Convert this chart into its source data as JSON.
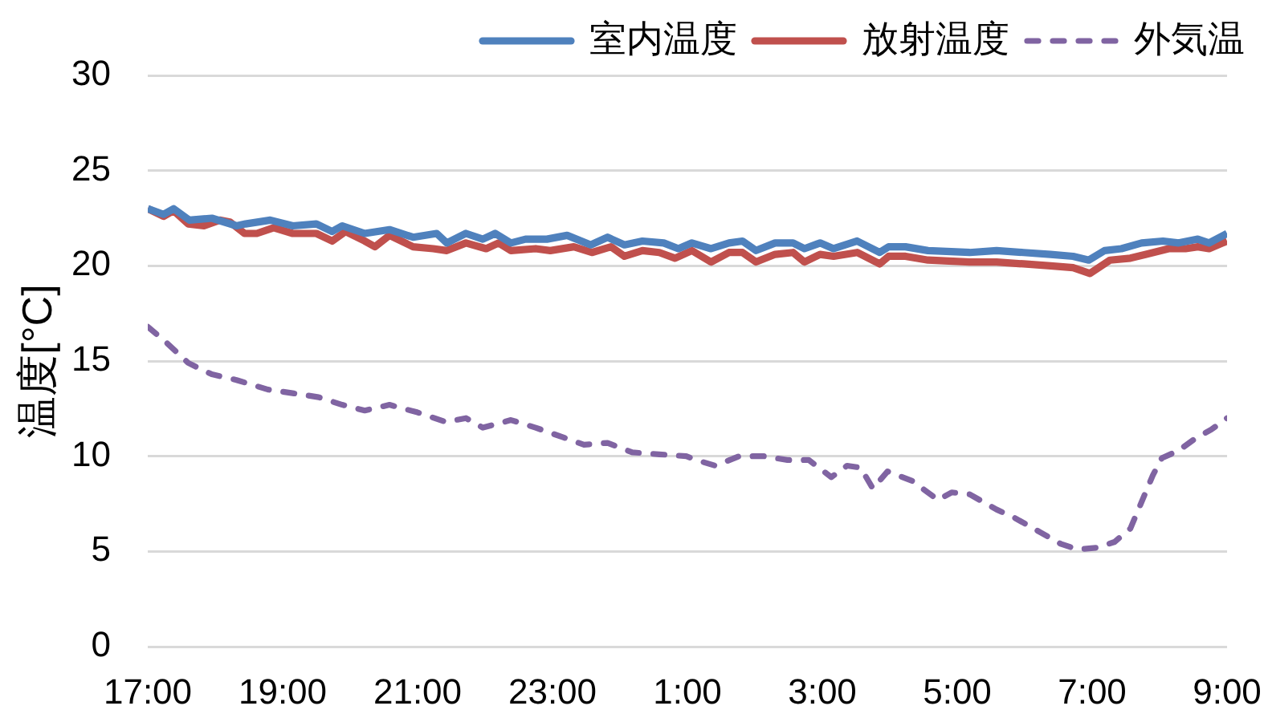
{
  "chart_data": {
    "type": "line",
    "ylabel": "温度[°C]",
    "xlim": [
      "2000-01-01T17:00",
      "2000-01-02T09:00"
    ],
    "xticks": [
      {
        "value": "2000-01-01T17:00",
        "label": "17:00"
      },
      {
        "value": "2000-01-01T19:00",
        "label": "19:00"
      },
      {
        "value": "2000-01-01T21:00",
        "label": "21:00"
      },
      {
        "value": "2000-01-01T23:00",
        "label": "23:00"
      },
      {
        "value": "2000-01-02T01:00",
        "label": "1:00"
      },
      {
        "value": "2000-01-02T03:00",
        "label": "3:00"
      },
      {
        "value": "2000-01-02T05:00",
        "label": "5:00"
      },
      {
        "value": "2000-01-02T07:00",
        "label": "7:00"
      },
      {
        "value": "2000-01-02T09:00",
        "label": "9:00"
      }
    ],
    "ylim": [
      0,
      30
    ],
    "yticks": [
      0,
      5,
      10,
      15,
      20,
      25,
      30
    ],
    "grid": "y",
    "legend": "top right",
    "marker": "none",
    "line_style": "solid",
    "series": [
      {
        "name": "室内温度",
        "color": "#4f81bd",
        "x": [
          "2000-01-01T17:00",
          "2000-01-01T17:14",
          "2000-01-01T17:23",
          "2000-01-01T17:37",
          "2000-01-01T17:57",
          "2000-01-01T18:19",
          "2000-01-01T18:27",
          "2000-01-01T18:49",
          "2000-01-01T19:09",
          "2000-01-01T19:30",
          "2000-01-01T19:44",
          "2000-01-01T19:53",
          "2000-01-01T20:13",
          "2000-01-01T20:35",
          "2000-01-01T20:56",
          "2000-01-01T21:17",
          "2000-01-01T21:26",
          "2000-01-01T21:43",
          "2000-01-01T21:58",
          "2000-01-01T22:09",
          "2000-01-01T22:23",
          "2000-01-01T22:36",
          "2000-01-01T22:55",
          "2000-01-01T23:13",
          "2000-01-01T23:34",
          "2000-01-01T23:49",
          "2000-01-02T00:04",
          "2000-01-02T00:20",
          "2000-01-02T00:39",
          "2000-01-02T00:52",
          "2000-01-02T01:04",
          "2000-01-02T01:21",
          "2000-01-02T01:37",
          "2000-01-02T01:49",
          "2000-01-02T02:01",
          "2000-01-02T02:18",
          "2000-01-02T02:34",
          "2000-01-02T02:44",
          "2000-01-02T02:58",
          "2000-01-02T03:10",
          "2000-01-02T03:31",
          "2000-01-02T03:51",
          "2000-01-02T03:59",
          "2000-01-02T04:14",
          "2000-01-02T04:34",
          "2000-01-02T05:11",
          "2000-01-02T05:35",
          "2000-01-02T05:59",
          "2000-01-02T06:23",
          "2000-01-02T06:43",
          "2000-01-02T06:57",
          "2000-01-02T07:11",
          "2000-01-02T07:26",
          "2000-01-02T07:44",
          "2000-01-02T08:03",
          "2000-01-02T08:17",
          "2000-01-02T08:34",
          "2000-01-02T08:44",
          "2000-01-02T09:00"
        ],
        "values": [
          23.0,
          22.7,
          23.0,
          22.4,
          22.5,
          22.1,
          22.2,
          22.4,
          22.1,
          22.2,
          21.8,
          22.1,
          21.7,
          21.9,
          21.5,
          21.7,
          21.2,
          21.7,
          21.4,
          21.7,
          21.2,
          21.4,
          21.4,
          21.6,
          21.1,
          21.5,
          21.1,
          21.3,
          21.2,
          20.9,
          21.2,
          20.9,
          21.2,
          21.3,
          20.8,
          21.2,
          21.2,
          20.9,
          21.2,
          20.9,
          21.3,
          20.7,
          21.0,
          21.0,
          20.8,
          20.7,
          20.8,
          20.7,
          20.6,
          20.5,
          20.3,
          20.8,
          20.9,
          21.2,
          21.3,
          21.2,
          21.4,
          21.2,
          21.7
        ]
      },
      {
        "name": "放射温度",
        "color": "#c0504d",
        "x": [
          "2000-01-01T17:00",
          "2000-01-01T17:14",
          "2000-01-01T17:23",
          "2000-01-01T17:36",
          "2000-01-01T17:50",
          "2000-01-01T18:04",
          "2000-01-01T18:13",
          "2000-01-01T18:26",
          "2000-01-01T18:37",
          "2000-01-01T18:52",
          "2000-01-01T19:09",
          "2000-01-01T19:30",
          "2000-01-01T19:44",
          "2000-01-01T19:56",
          "2000-01-01T20:13",
          "2000-01-01T20:22",
          "2000-01-01T20:35",
          "2000-01-01T20:56",
          "2000-01-01T21:14",
          "2000-01-01T21:26",
          "2000-01-01T21:43",
          "2000-01-01T22:01",
          "2000-01-01T22:12",
          "2000-01-01T22:23",
          "2000-01-01T22:45",
          "2000-01-01T22:58",
          "2000-01-01T23:19",
          "2000-01-01T23:35",
          "2000-01-01T23:52",
          "2000-01-02T00:04",
          "2000-01-02T00:20",
          "2000-01-02T00:35",
          "2000-01-02T00:49",
          "2000-01-02T01:04",
          "2000-01-02T01:21",
          "2000-01-02T01:37",
          "2000-01-02T01:49",
          "2000-01-02T02:01",
          "2000-01-02T02:18",
          "2000-01-02T02:34",
          "2000-01-02T02:44",
          "2000-01-02T02:58",
          "2000-01-02T03:10",
          "2000-01-02T03:31",
          "2000-01-02T03:51",
          "2000-01-02T03:59",
          "2000-01-02T04:14",
          "2000-01-02T04:34",
          "2000-01-02T05:11",
          "2000-01-02T05:35",
          "2000-01-02T05:59",
          "2000-01-02T06:23",
          "2000-01-02T06:43",
          "2000-01-02T06:58",
          "2000-01-02T07:16",
          "2000-01-02T07:34",
          "2000-01-02T07:48",
          "2000-01-02T08:08",
          "2000-01-02T08:23",
          "2000-01-02T08:34",
          "2000-01-02T08:44",
          "2000-01-02T09:00"
        ],
        "values": [
          23.0,
          22.6,
          22.9,
          22.2,
          22.1,
          22.4,
          22.3,
          21.7,
          21.7,
          22.0,
          21.7,
          21.7,
          21.3,
          21.8,
          21.3,
          21.0,
          21.6,
          21.0,
          20.9,
          20.8,
          21.2,
          20.9,
          21.2,
          20.8,
          20.9,
          20.8,
          21.0,
          20.7,
          21.0,
          20.5,
          20.8,
          20.7,
          20.4,
          20.8,
          20.2,
          20.7,
          20.7,
          20.2,
          20.6,
          20.7,
          20.2,
          20.6,
          20.5,
          20.7,
          20.1,
          20.5,
          20.5,
          20.3,
          20.2,
          20.2,
          20.1,
          20.0,
          19.9,
          19.6,
          20.3,
          20.4,
          20.6,
          20.9,
          20.9,
          21.0,
          20.9,
          21.3
        ]
      },
      {
        "name": "外気温",
        "color": "#8064a2",
        "line_style": "dashed",
        "x": [
          "2000-01-01T17:00",
          "2000-01-01T17:16",
          "2000-01-01T17:36",
          "2000-01-01T17:57",
          "2000-01-01T18:19",
          "2000-01-01T18:47",
          "2000-01-01T19:10",
          "2000-01-01T19:32",
          "2000-01-01T19:53",
          "2000-01-01T20:13",
          "2000-01-01T20:35",
          "2000-01-01T21:00",
          "2000-01-01T21:25",
          "2000-01-01T21:43",
          "2000-01-01T21:58",
          "2000-01-01T22:23",
          "2000-01-01T22:45",
          "2000-01-01T23:09",
          "2000-01-01T23:28",
          "2000-01-01T23:49",
          "2000-01-02T00:11",
          "2000-01-02T00:35",
          "2000-01-02T00:59",
          "2000-01-02T01:08",
          "2000-01-02T01:25",
          "2000-01-02T01:46",
          "2000-01-02T02:08",
          "2000-01-02T02:29",
          "2000-01-02T02:48",
          "2000-01-02T03:08",
          "2000-01-02T03:22",
          "2000-01-02T03:34",
          "2000-01-02T03:45",
          "2000-01-02T03:58",
          "2000-01-02T04:20",
          "2000-01-02T04:43",
          "2000-01-02T04:55",
          "2000-01-02T05:11",
          "2000-01-02T05:35",
          "2000-01-02T05:50",
          "2000-01-02T06:14",
          "2000-01-02T06:32",
          "2000-01-02T06:47",
          "2000-01-02T07:05",
          "2000-01-02T07:20",
          "2000-01-02T07:34",
          "2000-01-02T07:44",
          "2000-01-02T07:54",
          "2000-01-02T08:02",
          "2000-01-02T08:17",
          "2000-01-02T08:31",
          "2000-01-02T08:46",
          "2000-01-02T09:00"
        ],
        "values": [
          16.8,
          16.0,
          14.9,
          14.3,
          14.0,
          13.5,
          13.3,
          13.1,
          12.7,
          12.4,
          12.7,
          12.3,
          11.8,
          12.0,
          11.5,
          11.9,
          11.5,
          11.0,
          10.6,
          10.7,
          10.2,
          10.1,
          10.0,
          9.8,
          9.5,
          10.0,
          10.0,
          9.8,
          9.8,
          8.9,
          9.5,
          9.4,
          8.3,
          9.2,
          8.7,
          7.7,
          8.1,
          8.0,
          7.2,
          6.8,
          6.0,
          5.4,
          5.1,
          5.2,
          5.5,
          6.2,
          7.6,
          9.0,
          9.9,
          10.3,
          10.9,
          11.4,
          12.0
        ]
      }
    ]
  }
}
